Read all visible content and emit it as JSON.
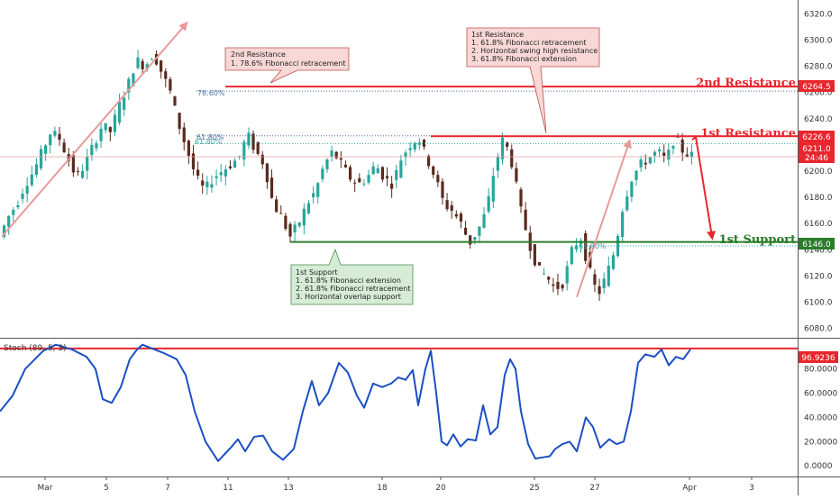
{
  "chart_data": {
    "type": "line",
    "price_panel": {
      "y_ticks": [
        6080.0,
        6100.0,
        6120.0,
        6140.0,
        6160.0,
        6180.0,
        6200.0,
        6220.0,
        6240.0,
        6260.0,
        6280.0,
        6300.0,
        6320.0
      ],
      "ylim": [
        6075,
        6325
      ],
      "price_line": [
        6150,
        6165,
        6175,
        6190,
        6200,
        6215,
        6230,
        6225,
        6210,
        6195,
        6205,
        6220,
        6235,
        6230,
        6250,
        6265,
        6285,
        6280,
        6290,
        6275,
        6260,
        6235,
        6215,
        6195,
        6185,
        6195,
        6200,
        6205,
        6210,
        6228,
        6215,
        6205,
        6175,
        6165,
        6150,
        6160,
        6175,
        6185,
        6205,
        6215,
        6205,
        6195,
        6190,
        6195,
        6205,
        6195,
        6190,
        6210,
        6220,
        6226,
        6210,
        6195,
        6175,
        6170,
        6160,
        6145,
        6155,
        6170,
        6205,
        6226,
        6205,
        6170,
        6145,
        6125,
        6120,
        6110,
        6115,
        6140,
        6150,
        6125,
        6105,
        6120,
        6140,
        6175,
        6195,
        6205,
        6210,
        6215,
        6208,
        6226,
        6215,
        6212
      ]
    },
    "stoch_panel": {
      "label": "Stoch (89, 5, 3)",
      "y_ticks": [
        "0.0000",
        "20.0000",
        "40.0000",
        "60.0000",
        "80.0000"
      ],
      "y_values": [
        0,
        20,
        40,
        60,
        80
      ],
      "ylim": [
        -8,
        102
      ],
      "line_color": "#1b4fc2",
      "points": [
        [
          0,
          45
        ],
        [
          14,
          58
        ],
        [
          28,
          80
        ],
        [
          48,
          95
        ],
        [
          62,
          100
        ],
        [
          80,
          96
        ],
        [
          96,
          90
        ],
        [
          106,
          80
        ],
        [
          114,
          55
        ],
        [
          124,
          52
        ],
        [
          134,
          65
        ],
        [
          144,
          88
        ],
        [
          152,
          96
        ],
        [
          158,
          100
        ],
        [
          168,
          97
        ],
        [
          182,
          93
        ],
        [
          196,
          88
        ],
        [
          206,
          75
        ],
        [
          216,
          45
        ],
        [
          228,
          20
        ],
        [
          242,
          4
        ],
        [
          256,
          15
        ],
        [
          264,
          22
        ],
        [
          272,
          12
        ],
        [
          282,
          24
        ],
        [
          292,
          25
        ],
        [
          302,
          12
        ],
        [
          314,
          5
        ],
        [
          326,
          14
        ],
        [
          336,
          45
        ],
        [
          346,
          70
        ],
        [
          354,
          50
        ],
        [
          364,
          60
        ],
        [
          376,
          85
        ],
        [
          386,
          77
        ],
        [
          396,
          58
        ],
        [
          404,
          48
        ],
        [
          414,
          68
        ],
        [
          424,
          65
        ],
        [
          434,
          68
        ],
        [
          442,
          73
        ],
        [
          450,
          71
        ],
        [
          458,
          79
        ],
        [
          464,
          50
        ],
        [
          472,
          80
        ],
        [
          478,
          95
        ],
        [
          484,
          60
        ],
        [
          490,
          20
        ],
        [
          496,
          17
        ],
        [
          503,
          26
        ],
        [
          511,
          16
        ],
        [
          519,
          22
        ],
        [
          528,
          21
        ],
        [
          536,
          50
        ],
        [
          544,
          26
        ],
        [
          552,
          32
        ],
        [
          560,
          75
        ],
        [
          566,
          88
        ],
        [
          572,
          80
        ],
        [
          578,
          45
        ],
        [
          586,
          18
        ],
        [
          594,
          6
        ],
        [
          602,
          7
        ],
        [
          610,
          8
        ],
        [
          616,
          14
        ],
        [
          624,
          18
        ],
        [
          632,
          20
        ],
        [
          640,
          12
        ],
        [
          650,
          40
        ],
        [
          658,
          32
        ],
        [
          666,
          15
        ],
        [
          676,
          22
        ],
        [
          684,
          18
        ],
        [
          692,
          20
        ],
        [
          700,
          45
        ],
        [
          708,
          85
        ],
        [
          716,
          92
        ],
        [
          726,
          90
        ],
        [
          734,
          96
        ],
        [
          742,
          83
        ],
        [
          750,
          90
        ],
        [
          758,
          88
        ],
        [
          766,
          96
        ]
      ],
      "level": 96.9236
    },
    "x_tick_labels": [
      "Mar",
      "5",
      "7",
      "11",
      "13",
      "18",
      "20",
      "25",
      "27",
      "Apr",
      "3"
    ],
    "levels": {
      "second_resistance": {
        "value": 6264.5,
        "label": "2nd Resistance",
        "price_tag": "6264.5",
        "color": "#e8262d"
      },
      "first_resistance": {
        "value": 6226.6,
        "label": "1st Resistance",
        "price_tag": "6226.6",
        "color": "#e8262d"
      },
      "first_support": {
        "value": 6146.0,
        "label": "1st Support",
        "price_tag": "6146.0",
        "color": "#2a7d2a"
      },
      "current": {
        "value": 6211,
        "price_tag": "6211.0",
        "countdown": "24:46"
      }
    },
    "fib_labels": {
      "f786": "78.60%",
      "f618a": "61.80%",
      "f618b": "61.80%",
      "f618c": "61.80%"
    },
    "stoch_tag": "96.9236",
    "callouts": {
      "second_resistance": [
        "2nd Resistance",
        "1. 78.6% Fibonacci retracement"
      ],
      "first_resistance": [
        "1st Resistance",
        "1. 61.8% Fibonacci retracement",
        "2. Horizontal swing high resistance",
        "3. 61.8% Fibonacci extension"
      ],
      "first_support": [
        "1st Support",
        "1. 61.8% Fibonacci extension",
        "2. 61.8% Fibonacci retracement",
        "3. Horizontal overlap support"
      ]
    },
    "colors": {
      "bull": "#26a69a",
      "bear": "#5a2a1e",
      "resistance_red": "#e8262d",
      "support_green": "#2a7d2a",
      "fib_blue": "#4a6fa5",
      "stoch_blue": "#1b4fc2",
      "arrow_pink": "#e89a9a",
      "callout_red_fill": "#f8d7d7",
      "callout_green_fill": "#d6ecd6"
    }
  }
}
